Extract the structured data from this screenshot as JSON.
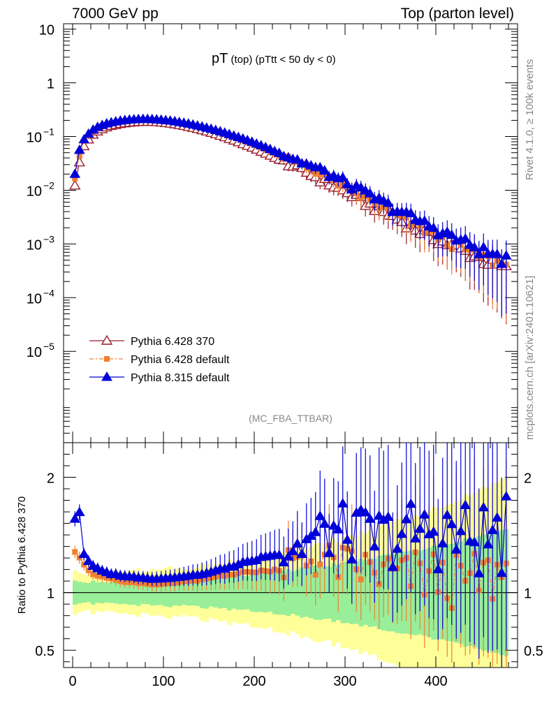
{
  "header": {
    "left": "7000 GeV pp",
    "right": "Top (parton level)"
  },
  "side_labels": {
    "rivet": "Rivet 4.1.0, ≥ 100k events",
    "mcplots": "mcplots.cern.ch [arXiv:2401.10621]"
  },
  "chart_data": {
    "type": "line",
    "title_main": "pT",
    "title_small": "(top)",
    "title_cut": "(pTtt < 50 dy < 0)",
    "analysis_tag": "(MC_FBA_TTBAR)",
    "main_y_ticks": [
      "10",
      "1",
      "10",
      "10",
      "10",
      "10",
      "10"
    ],
    "main_y_exponents": [
      "",
      "",
      "−1",
      "−2",
      "−3",
      "−4",
      "−5"
    ],
    "main_ylim_log10": [
      -6.7,
      1.1
    ],
    "ratio_ylabel": "Ratio to Pythia 6.428 370",
    "ratio_ylim": [
      0.35,
      2.3
    ],
    "ratio_ticks": [
      "2",
      "1",
      "0.5"
    ],
    "x_ticks": [
      "0",
      "100",
      "200",
      "300",
      "400"
    ],
    "xlim": [
      -10,
      490
    ],
    "bin_width": 5,
    "x_first_center": 2.5,
    "colors": {
      "p6_370": "#9b1c2a",
      "p6_default": "#f08030",
      "p8": "#0000d8",
      "band_green": "#99ee99",
      "band_yellow": "#ffff99"
    },
    "series": [
      {
        "name": "Pythia 6.428 370",
        "marker": "open-triangle",
        "values": [
          0.0122,
          0.033,
          0.066,
          0.088,
          0.108,
          0.124,
          0.137,
          0.148,
          0.157,
          0.164,
          0.171,
          0.176,
          0.18,
          0.183,
          0.186,
          0.187,
          0.188,
          0.187,
          0.185,
          0.182,
          0.178,
          0.174,
          0.169,
          0.163,
          0.157,
          0.151,
          0.144,
          0.138,
          0.131,
          0.124,
          0.117,
          0.11,
          0.103,
          0.097,
          0.09,
          0.084,
          0.078,
          0.072,
          0.067,
          0.062,
          0.057,
          0.052,
          0.048,
          0.044,
          0.04,
          0.037,
          0.034,
          0.031,
          0.028,
          0.026,
          0.0235,
          0.0213,
          0.0193,
          0.0175,
          0.0159,
          0.0145,
          0.0131,
          0.0118,
          0.0107,
          0.0097,
          0.0088,
          0.008,
          0.0072,
          0.0065,
          0.0058,
          0.0053,
          0.0048,
          0.0043,
          0.0039,
          0.0035,
          0.0032,
          0.0029,
          0.0026,
          0.0024,
          0.0021,
          0.0019,
          0.0017,
          0.0016,
          0.0014,
          0.0013,
          0.0012,
          0.0011,
          0.001,
          0.00092,
          0.00084,
          0.00078,
          0.00071,
          0.00066,
          0.0006,
          0.00055,
          0.0005,
          0.00046,
          0.00042,
          0.00039,
          0.00036,
          0.00033
        ]
      },
      {
        "name": "Pythia 6.428 default",
        "marker": "filled-square",
        "values": [
          0.0165,
          0.043,
          0.082,
          0.105,
          0.125,
          0.142,
          0.156,
          0.167,
          0.176,
          0.182,
          0.188,
          0.192,
          0.196,
          0.199,
          0.201,
          0.202,
          0.202,
          0.2,
          0.198,
          0.195,
          0.192,
          0.188,
          0.183,
          0.178,
          0.172,
          0.166,
          0.159,
          0.152,
          0.146,
          0.139,
          0.132,
          0.125,
          0.118,
          0.111,
          0.104,
          0.097,
          0.091,
          0.085,
          0.079,
          0.073,
          0.067,
          0.062,
          0.057,
          0.052,
          0.048,
          0.044,
          0.041,
          0.038,
          0.035,
          0.032,
          0.03,
          0.027,
          0.025,
          0.0225,
          0.0205,
          0.0185,
          0.0165,
          0.0148,
          0.0133,
          0.012,
          0.0108,
          0.0097,
          0.0087,
          0.0078,
          0.007,
          0.0063,
          0.0056,
          0.005,
          0.0045,
          0.0041,
          0.0037,
          0.0033,
          0.003,
          0.0027,
          0.0024,
          0.0022,
          0.002,
          0.0018,
          0.0016,
          0.0015,
          0.00135,
          0.0012,
          0.0011,
          0.001,
          0.00092,
          0.00085,
          0.00078,
          0.00072,
          0.00066,
          0.00061,
          0.00056,
          0.00052,
          0.00048,
          0.00045,
          0.00042,
          0.00039
        ]
      },
      {
        "name": "Pythia 8.315 default",
        "marker": "filled-triangle",
        "values": [
          0.02,
          0.056,
          0.088,
          0.112,
          0.133,
          0.15,
          0.163,
          0.174,
          0.182,
          0.19,
          0.196,
          0.201,
          0.205,
          0.208,
          0.21,
          0.211,
          0.211,
          0.209,
          0.207,
          0.204,
          0.2,
          0.196,
          0.191,
          0.185,
          0.179,
          0.173,
          0.166,
          0.159,
          0.152,
          0.145,
          0.138,
          0.131,
          0.124,
          0.117,
          0.11,
          0.103,
          0.097,
          0.091,
          0.085,
          0.079,
          0.073,
          0.068,
          0.063,
          0.058,
          0.053,
          0.049,
          0.045,
          0.042,
          0.039,
          0.036,
          0.033,
          0.031,
          0.028,
          0.026,
          0.024,
          0.0218,
          0.0198,
          0.018,
          0.0164,
          0.0149,
          0.0134,
          0.012,
          0.0108,
          0.0097,
          0.0088,
          0.0079,
          0.0071,
          0.0064,
          0.0058,
          0.0052,
          0.0047,
          0.0043,
          0.0039,
          0.0035,
          0.0032,
          0.0029,
          0.0026,
          0.0024,
          0.0022,
          0.002,
          0.0018,
          0.0016,
          0.0015,
          0.0014,
          0.00125,
          0.00115,
          0.00105,
          0.00096,
          0.00088,
          0.0008,
          0.00073,
          0.00068,
          0.00062,
          0.00058,
          0.00054,
          0.0005
        ]
      }
    ]
  }
}
